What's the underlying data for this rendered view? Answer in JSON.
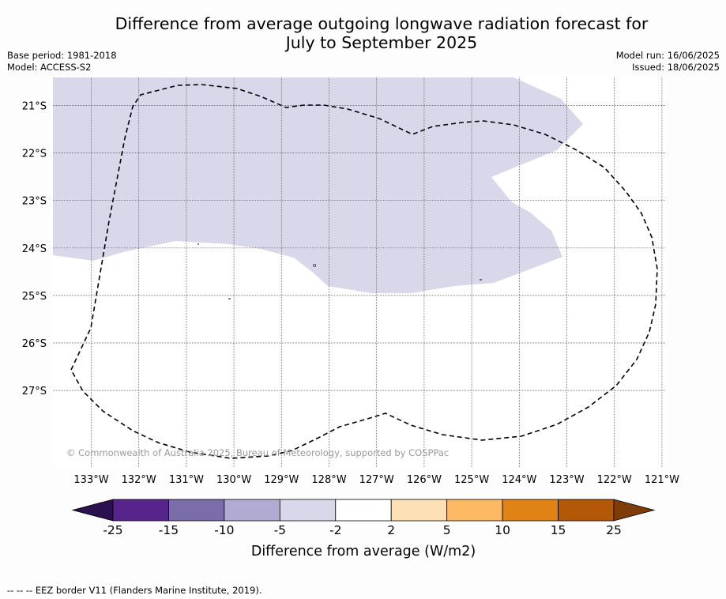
{
  "title_line1": "Difference from average outgoing longwave radiation forecast for",
  "title_line2": "July to September 2025",
  "meta_left": {
    "base_period": "Base period: 1981-2018",
    "model": "Model: ACCESS-S2"
  },
  "meta_right": {
    "model_run": "Model run: 16/06/2025",
    "issued": "Issued: 18/06/2025"
  },
  "map": {
    "lat_labels": [
      "21°S",
      "22°S",
      "23°S",
      "24°S",
      "25°S",
      "26°S",
      "27°S"
    ],
    "lon_labels": [
      "133°W",
      "132°W",
      "131°W",
      "130°W",
      "129°W",
      "128°W",
      "127°W",
      "126°W",
      "125°W",
      "124°W",
      "123°W",
      "122°W",
      "121°W"
    ],
    "credit": "© Commonwealth of Australia 2025, Bureau of Meteorology, supported by COSPPac",
    "shaded_category": "-5 to -2",
    "colors": {
      "shade": "#d8d8ea",
      "grid": "#555555",
      "eez": "#000000"
    }
  },
  "colorbar": {
    "title": "Difference from average (W/m2)",
    "labels": [
      "-25",
      "-15",
      "-10",
      "-5",
      "-2",
      "2",
      "5",
      "10",
      "15",
      "25"
    ],
    "colors": [
      "#2c0f4f",
      "#56248a",
      "#7b6caa",
      "#b1aad3",
      "#d8d8ea",
      "#ffffff",
      "#fee0b6",
      "#fdb863",
      "#e08214",
      "#b35806",
      "#7f3b08"
    ]
  },
  "footer": "-- -- -- EEZ border V11 (Flanders Marine Institute, 2019)."
}
